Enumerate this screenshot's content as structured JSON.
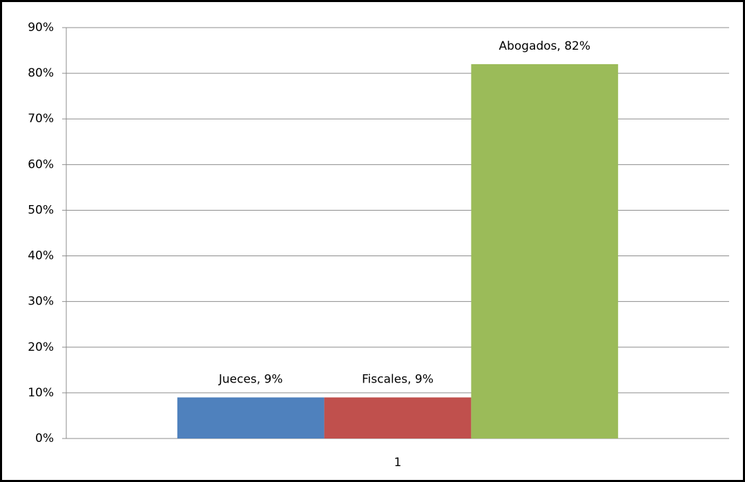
{
  "chart_data": {
    "type": "bar",
    "categories": [
      "1"
    ],
    "series": [
      {
        "color": "#4f81bd",
        "values": [
          9
        ],
        "value_labels": [
          "Jueces, 9%"
        ]
      },
      {
        "color": "#c0504d",
        "values": [
          9
        ],
        "value_labels": [
          "Fiscales, 9%"
        ]
      },
      {
        "color": "#9bbb59",
        "values": [
          82
        ],
        "value_labels": [
          "Abogados, 82%"
        ]
      }
    ],
    "ylim": [
      0,
      90
    ],
    "yticks": [
      {
        "value": 0,
        "label": "0%"
      },
      {
        "value": 10,
        "label": "10%"
      },
      {
        "value": 20,
        "label": "20%"
      },
      {
        "value": 30,
        "label": "30%"
      },
      {
        "value": 40,
        "label": "40%"
      },
      {
        "value": 50,
        "label": "50%"
      },
      {
        "value": 60,
        "label": "60%"
      },
      {
        "value": 70,
        "label": "70%"
      },
      {
        "value": 80,
        "label": "80%"
      },
      {
        "value": 90,
        "label": "90%"
      }
    ],
    "grid": true
  }
}
